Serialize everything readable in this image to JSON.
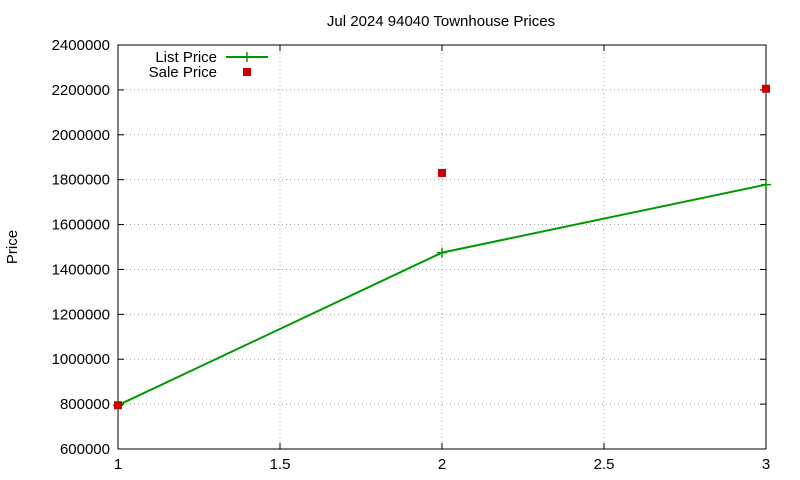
{
  "chart_data": {
    "type": "line",
    "title": "Jul 2024 94040 Townhouse Prices",
    "xlabel": "",
    "ylabel": "Price",
    "xlim": [
      1,
      3
    ],
    "ylim": [
      600000,
      2400000
    ],
    "x_ticks": [
      1,
      1.5,
      2,
      2.5,
      3
    ],
    "x_tick_labels": [
      "1",
      "1.5",
      "2",
      "2.5",
      "3"
    ],
    "y_ticks": [
      600000,
      800000,
      1000000,
      1200000,
      1400000,
      1600000,
      1800000,
      2000000,
      2200000,
      2400000
    ],
    "y_tick_labels": [
      "600000",
      "800000",
      "1000000",
      "1200000",
      "1400000",
      "1600000",
      "1800000",
      "2000000",
      "2200000",
      "2400000"
    ],
    "grid": true,
    "legend_position": "top-left",
    "series": [
      {
        "name": "List Price",
        "style": "linespoints",
        "marker": "plus",
        "color": "#009900",
        "x": [
          1,
          2,
          3
        ],
        "y": [
          795000,
          1475000,
          1778000
        ]
      },
      {
        "name": "Sale Price",
        "style": "points",
        "marker": "square",
        "color": "#cc0000",
        "x": [
          1,
          2,
          3
        ],
        "y": [
          795000,
          1830000,
          2205000
        ]
      }
    ]
  }
}
